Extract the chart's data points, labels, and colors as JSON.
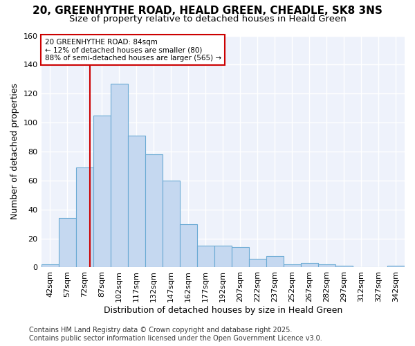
{
  "title_line1": "20, GREENHYTHE ROAD, HEALD GREEN, CHEADLE, SK8 3NS",
  "title_line2": "Size of property relative to detached houses in Heald Green",
  "xlabel": "Distribution of detached houses by size in Heald Green",
  "ylabel": "Number of detached properties",
  "bin_labels": [
    "42sqm",
    "57sqm",
    "72sqm",
    "87sqm",
    "102sqm",
    "117sqm",
    "132sqm",
    "147sqm",
    "162sqm",
    "177sqm",
    "192sqm",
    "207sqm",
    "222sqm",
    "237sqm",
    "252sqm",
    "267sqm",
    "282sqm",
    "297sqm",
    "312sqm",
    "327sqm",
    "342sqm"
  ],
  "bin_edges": [
    42,
    57,
    72,
    87,
    102,
    117,
    132,
    147,
    162,
    177,
    192,
    207,
    222,
    237,
    252,
    267,
    282,
    297,
    312,
    327,
    342
  ],
  "values": [
    2,
    34,
    69,
    105,
    127,
    91,
    78,
    60,
    30,
    15,
    15,
    14,
    6,
    8,
    2,
    3,
    2,
    1,
    0,
    0,
    1
  ],
  "bar_color": "#c5d8f0",
  "bar_edge_color": "#6aaad4",
  "property_size": 84,
  "vline_color": "#cc0000",
  "annotation_text": "20 GREENHYTHE ROAD: 84sqm\n← 12% of detached houses are smaller (80)\n88% of semi-detached houses are larger (565) →",
  "annotation_box_color": "#ffffff",
  "annotation_box_edge": "#cc0000",
  "ylim": [
    0,
    160
  ],
  "yticks": [
    0,
    20,
    40,
    60,
    80,
    100,
    120,
    140,
    160
  ],
  "footer_line1": "Contains HM Land Registry data © Crown copyright and database right 2025.",
  "footer_line2": "Contains public sector information licensed under the Open Government Licence v3.0.",
  "fig_bg_color": "#ffffff",
  "plot_bg_color": "#eef2fb",
  "grid_color": "#ffffff",
  "title_fontsize": 11,
  "subtitle_fontsize": 9.5,
  "axis_label_fontsize": 9,
  "tick_fontsize": 8,
  "annot_fontsize": 7.5,
  "footer_fontsize": 7
}
